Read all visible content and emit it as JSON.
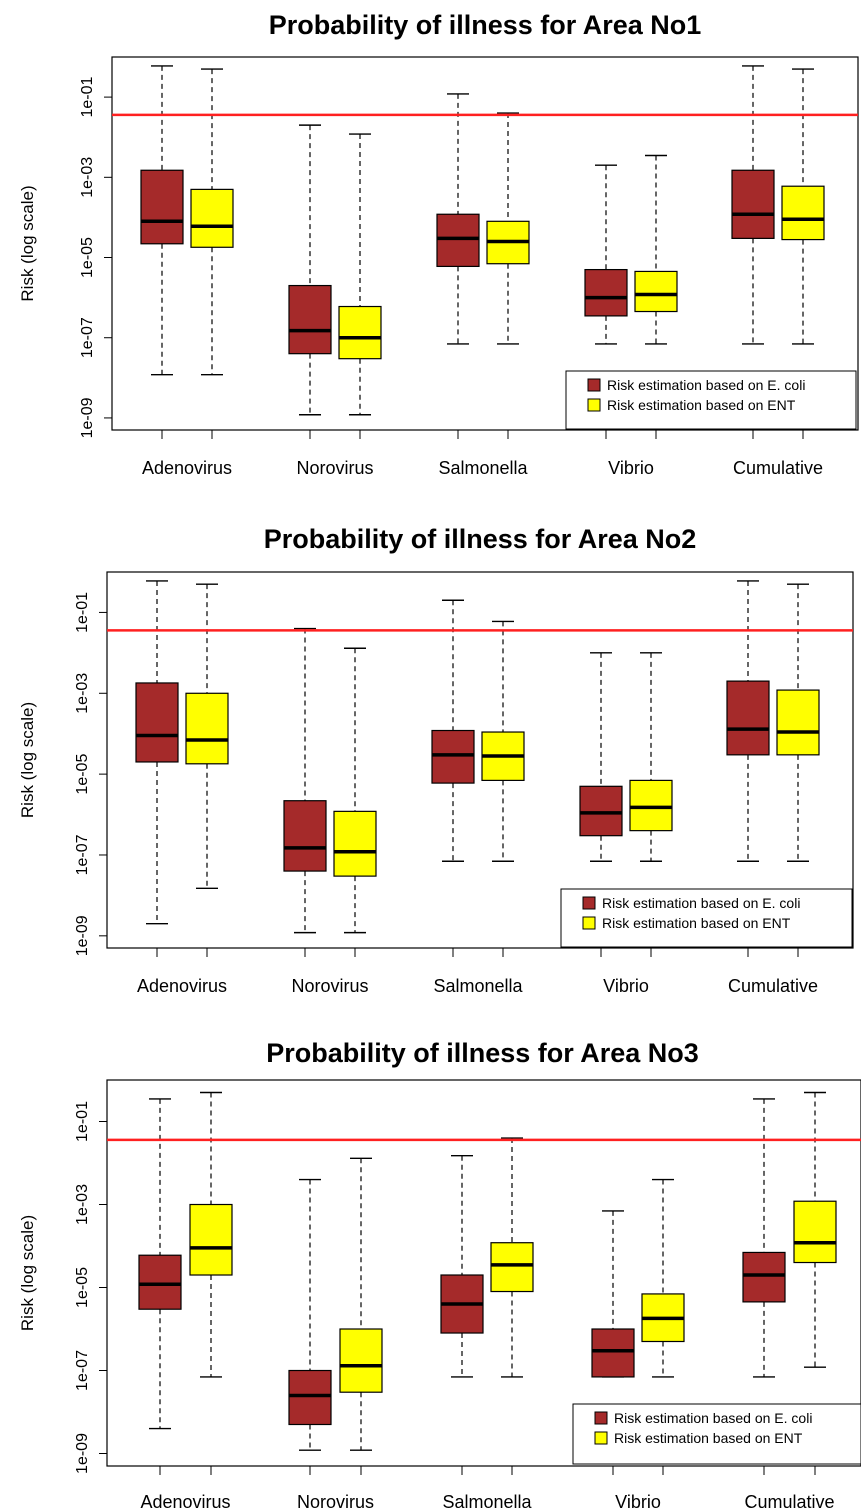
{
  "chart_data": [
    {
      "type": "box",
      "title": "Probability of illness for Area No1",
      "ylabel": "Risk (log scale)",
      "yscale": "log",
      "ylim": [
        5e-10,
        1.0
      ],
      "yticks": [
        "1e-09",
        "1e-07",
        "1e-05",
        "1e-03",
        "1e-01"
      ],
      "threshold": 0.036,
      "categories": [
        "Adenovirus",
        "Norovirus",
        "Salmonella",
        "Vibrio",
        "Cumulative"
      ],
      "legend": {
        "position": "bottom-right"
      },
      "series": [
        {
          "name": "Risk estimation based on E. coli",
          "color": "#a52a2a",
          "boxes": [
            {
              "min": 1.2e-08,
              "q1": 2.2e-05,
              "median": 8e-05,
              "q3": 0.0015,
              "max": 0.6
            },
            {
              "min": 1.2e-09,
              "q1": 4e-08,
              "median": 1.5e-07,
              "q3": 2e-06,
              "max": 0.02
            },
            {
              "min": 7e-08,
              "q1": 6e-06,
              "median": 3e-05,
              "q3": 0.00012,
              "max": 0.12
            },
            {
              "min": 7e-08,
              "q1": 3.5e-07,
              "median": 1e-06,
              "q3": 5e-06,
              "max": 0.002
            },
            {
              "min": 7e-08,
              "q1": 3e-05,
              "median": 0.00012,
              "q3": 0.0015,
              "max": 0.6
            }
          ]
        },
        {
          "name": "Risk estimation based on ENT",
          "color": "#ffff00",
          "boxes": [
            {
              "min": 1.2e-08,
              "q1": 1.8e-05,
              "median": 6e-05,
              "q3": 0.0005,
              "max": 0.5
            },
            {
              "min": 1.2e-09,
              "q1": 3e-08,
              "median": 1e-07,
              "q3": 6e-07,
              "max": 0.012
            },
            {
              "min": 7e-08,
              "q1": 7e-06,
              "median": 2.5e-05,
              "q3": 8e-05,
              "max": 0.04
            },
            {
              "min": 7e-08,
              "q1": 4.5e-07,
              "median": 1.2e-06,
              "q3": 4.5e-06,
              "max": 0.0035
            },
            {
              "min": 7e-08,
              "q1": 2.8e-05,
              "median": 9e-05,
              "q3": 0.0006,
              "max": 0.5
            }
          ]
        }
      ]
    },
    {
      "type": "box",
      "title": "Probability of illness for Area No2",
      "ylabel": "Risk (log scale)",
      "yscale": "log",
      "ylim": [
        5e-10,
        1.0
      ],
      "yticks": [
        "1e-09",
        "1e-07",
        "1e-05",
        "1e-03",
        "1e-01"
      ],
      "threshold": 0.036,
      "categories": [
        "Adenovirus",
        "Norovirus",
        "Salmonella",
        "Vibrio",
        "Cumulative"
      ],
      "legend": {
        "position": "bottom-right"
      },
      "series": [
        {
          "name": "Risk estimation based on E. coli",
          "color": "#a52a2a",
          "boxes": [
            {
              "min": 2e-09,
              "q1": 2e-05,
              "median": 9e-05,
              "q3": 0.0018,
              "max": 0.6
            },
            {
              "min": 1.2e-09,
              "q1": 4e-08,
              "median": 1.5e-07,
              "q3": 2.2e-06,
              "max": 0.04
            },
            {
              "min": 7e-08,
              "q1": 6e-06,
              "median": 3e-05,
              "q3": 0.00012,
              "max": 0.2
            },
            {
              "min": 7e-08,
              "q1": 3e-07,
              "median": 1.1e-06,
              "q3": 5e-06,
              "max": 0.01
            },
            {
              "min": 7e-08,
              "q1": 3e-05,
              "median": 0.00013,
              "q3": 0.002,
              "max": 0.6
            }
          ]
        },
        {
          "name": "Risk estimation based on ENT",
          "color": "#ffff00",
          "boxes": [
            {
              "min": 1.5e-08,
              "q1": 1.8e-05,
              "median": 7e-05,
              "q3": 0.001,
              "max": 0.5
            },
            {
              "min": 1.2e-09,
              "q1": 3e-08,
              "median": 1.2e-07,
              "q3": 1.2e-06,
              "max": 0.013
            },
            {
              "min": 7e-08,
              "q1": 7e-06,
              "median": 2.8e-05,
              "q3": 0.00011,
              "max": 0.06
            },
            {
              "min": 7e-08,
              "q1": 4e-07,
              "median": 1.5e-06,
              "q3": 7e-06,
              "max": 0.01
            },
            {
              "min": 7e-08,
              "q1": 3e-05,
              "median": 0.00011,
              "q3": 0.0012,
              "max": 0.5
            }
          ]
        }
      ]
    },
    {
      "type": "box",
      "title": "Probability of illness for Area No3",
      "ylabel": "Risk (log scale)",
      "yscale": "log",
      "ylim": [
        5e-10,
        1.0
      ],
      "yticks": [
        "1e-09",
        "1e-07",
        "1e-05",
        "1e-03",
        "1e-01"
      ],
      "threshold": 0.036,
      "categories": [
        "Adenovirus",
        "Norovirus",
        "Salmonella",
        "Vibrio",
        "Cumulative"
      ],
      "legend": {
        "position": "bottom-right"
      },
      "series": [
        {
          "name": "Risk estimation based on E. coli",
          "color": "#a52a2a",
          "boxes": [
            {
              "min": 4e-09,
              "q1": 3e-06,
              "median": 1.2e-05,
              "q3": 6e-05,
              "max": 0.35
            },
            {
              "min": 1.2e-09,
              "q1": 5e-09,
              "median": 2.5e-08,
              "q3": 1e-07,
              "max": 0.004
            },
            {
              "min": 7e-08,
              "q1": 8e-07,
              "median": 4e-06,
              "q3": 2e-05,
              "max": 0.015
            },
            {
              "min": 7e-08,
              "q1": 7e-08,
              "median": 3e-07,
              "q3": 1e-06,
              "max": 0.0007
            },
            {
              "min": 7e-08,
              "q1": 4.5e-06,
              "median": 2e-05,
              "q3": 7e-05,
              "max": 0.35
            }
          ]
        },
        {
          "name": "Risk estimation based on ENT",
          "color": "#ffff00",
          "boxes": [
            {
              "min": 7e-08,
              "q1": 2e-05,
              "median": 9e-05,
              "q3": 0.001,
              "max": 0.5
            },
            {
              "min": 1.2e-09,
              "q1": 3e-08,
              "median": 1.3e-07,
              "q3": 1e-06,
              "max": 0.013
            },
            {
              "min": 7e-08,
              "q1": 8e-06,
              "median": 3.5e-05,
              "q3": 0.00012,
              "max": 0.04
            },
            {
              "min": 7e-08,
              "q1": 5e-07,
              "median": 1.8e-06,
              "q3": 7e-06,
              "max": 0.004
            },
            {
              "min": 1.2e-07,
              "q1": 4e-05,
              "median": 0.00012,
              "q3": 0.0012,
              "max": 0.5
            }
          ]
        }
      ]
    }
  ]
}
